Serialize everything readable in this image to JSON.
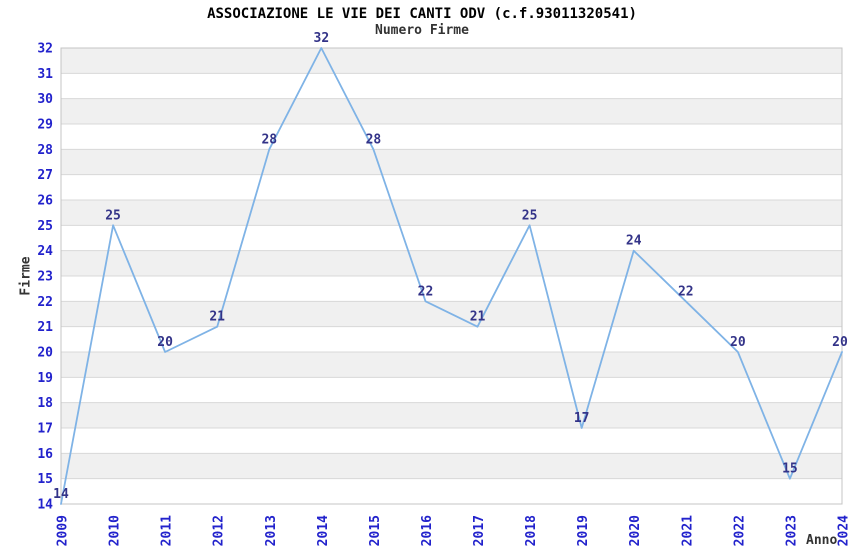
{
  "header": {
    "title": "ASSOCIAZIONE LE VIE DEI CANTI ODV (c.f.93011320541)",
    "subtitle": "Numero Firme"
  },
  "chart_data": {
    "type": "line",
    "title": "ASSOCIAZIONE LE VIE DEI CANTI ODV (c.f.93011320541)",
    "subtitle": "Numero Firme",
    "xlabel": "Anno",
    "ylabel": "Firme",
    "x": [
      2009,
      2010,
      2011,
      2012,
      2013,
      2014,
      2015,
      2016,
      2017,
      2018,
      2019,
      2020,
      2021,
      2022,
      2023,
      2024
    ],
    "values": [
      14,
      25,
      20,
      21,
      28,
      32,
      28,
      22,
      21,
      25,
      17,
      24,
      22,
      20,
      15,
      20
    ],
    "ylim": [
      14,
      32
    ],
    "ytick_step": 1,
    "y_ticks": [
      14,
      15,
      16,
      17,
      18,
      19,
      20,
      21,
      22,
      23,
      24,
      25,
      26,
      27,
      28,
      29,
      30,
      31,
      32
    ],
    "grid": true,
    "striped_bands": true,
    "show_data_labels": true,
    "legend": null,
    "colors": {
      "line": "#7FB3E6",
      "tick_label": "#2222CC",
      "data_label": "#333388",
      "stripe": "#F0F0F0",
      "grid": "#D8D8D8",
      "plot_border": "#C4C4C4",
      "title": "#000000",
      "axis_title": "#333333",
      "background": "#FFFFFF"
    }
  }
}
